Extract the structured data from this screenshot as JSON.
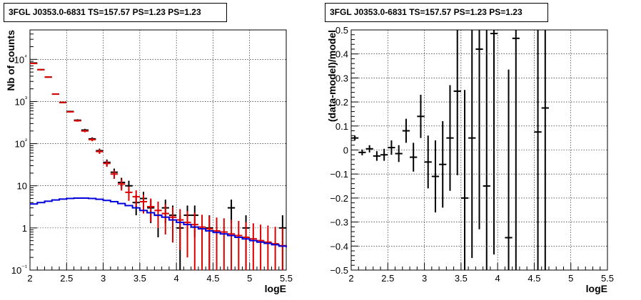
{
  "chart_data": [
    {
      "type": "line",
      "title": "3FGL J0353.0-6831 TS=157.57 PS=1.23 PS=1.23",
      "xlabel": "logE",
      "ylabel": "Nb of counts",
      "xlim": [
        2,
        5.5
      ],
      "ylim": [
        0.1,
        50000
      ],
      "y_scale": "log",
      "grid": true,
      "x_ticks": [
        "2",
        "2.5",
        "3",
        "3.5",
        "4",
        "4.5",
        "5",
        "5.5"
      ],
      "y_ticks": [
        "10⁻¹",
        "1",
        "10",
        "10²",
        "10³",
        "10⁴"
      ],
      "series": [
        {
          "color": "#000000",
          "x": [
            2.05,
            2.15,
            2.25,
            2.35,
            2.45,
            2.55,
            2.65,
            2.75,
            2.85,
            2.95,
            3.05,
            3.15,
            3.25,
            3.35,
            3.45,
            3.55,
            3.65,
            3.75,
            3.85,
            3.95,
            4.05,
            4.15,
            4.25,
            4.35,
            4.45,
            4.55,
            4.65,
            4.75,
            4.85,
            4.95,
            5.05,
            5.15,
            5.25,
            5.35,
            5.45
          ],
          "values": [
            8200,
            5700,
            3800,
            1500,
            950,
            580,
            360,
            210,
            130,
            68,
            36,
            21,
            12,
            10,
            4.0,
            5.0,
            3.0,
            2.0,
            3.0,
            2.0,
            1.0,
            2.0,
            2.0,
            null,
            1.0,
            null,
            null,
            3.0,
            null,
            1.0,
            null,
            null,
            null,
            null,
            1.0
          ],
          "errors": [
            90,
            75,
            62,
            39,
            31,
            24,
            19,
            14.5,
            11.4,
            8.2,
            6.0,
            4.6,
            3.5,
            3.2,
            2.0,
            2.2,
            1.7,
            1.4,
            1.7,
            1.4,
            1.0,
            1.4,
            1.4,
            null,
            1.0,
            null,
            null,
            1.7,
            null,
            1.0,
            null,
            null,
            null,
            null,
            1.0
          ]
        },
        {
          "color": "#dd0000",
          "x": [
            2.05,
            2.15,
            2.25,
            2.35,
            2.45,
            2.55,
            2.65,
            2.75,
            2.85,
            2.95,
            3.05,
            3.15,
            3.25,
            3.35,
            3.45,
            3.55,
            3.65,
            3.75,
            3.85,
            3.95,
            4.05,
            4.15,
            4.25,
            4.35,
            4.45,
            4.55,
            4.65,
            4.75,
            4.85,
            4.95,
            5.05,
            5.15,
            5.25,
            5.35,
            5.45
          ],
          "values": [
            8000,
            5700,
            3800,
            1500,
            950,
            570,
            350,
            200,
            125,
            65,
            34,
            19,
            11,
            7,
            5.5,
            4.2,
            3.2,
            2.6,
            2.2,
            1.8,
            1.55,
            1.35,
            1.2,
            1.05,
            0.95,
            0.85,
            0.8,
            0.72,
            0.66,
            0.6,
            0.55,
            0.5,
            0.46,
            0.42,
            0.38
          ],
          "errors": [
            90,
            75,
            62,
            39,
            31,
            24,
            19,
            14,
            11,
            8,
            5.8,
            4.4,
            3.3,
            2.6,
            2.3,
            2.0,
            1.8,
            1.6,
            1.5,
            1.35,
            1.25,
            1.15,
            1.1,
            1.0,
            0.97,
            0.92,
            0.89,
            0.85,
            0.81,
            0.77,
            0.74,
            0.7,
            0.68,
            0.65,
            0.62
          ]
        },
        {
          "color": "#0000dd",
          "x": [
            2.0,
            2.1,
            2.2,
            2.3,
            2.4,
            2.5,
            2.6,
            2.7,
            2.8,
            2.9,
            3.0,
            3.1,
            3.2,
            3.3,
            3.4,
            3.5,
            3.6,
            3.7,
            3.8,
            3.9,
            4.0,
            4.1,
            4.2,
            4.3,
            4.4,
            4.5,
            4.6,
            4.7,
            4.8,
            4.9,
            5.0,
            5.1,
            5.2,
            5.3,
            5.4,
            5.5
          ],
          "values": [
            3.7,
            4.0,
            4.3,
            4.6,
            4.85,
            5.0,
            5.1,
            5.1,
            5.0,
            4.8,
            4.5,
            4.2,
            3.8,
            3.4,
            3.0,
            2.6,
            2.3,
            2.0,
            1.8,
            1.55,
            1.35,
            1.2,
            1.05,
            0.95,
            0.85,
            0.78,
            0.72,
            0.66,
            0.6,
            0.55,
            0.5,
            0.46,
            0.43,
            0.4,
            0.37,
            0.35
          ]
        }
      ]
    },
    {
      "type": "scatter",
      "title": "3FGL J0353.0-6831 TS=157.57 PS=1.23 PS=1.23",
      "xlabel": "logE",
      "ylabel": "(data-model)/model",
      "xlim": [
        2,
        5.5
      ],
      "ylim": [
        -0.5,
        0.5
      ],
      "grid": true,
      "x_ticks": [
        "2",
        "2.5",
        "3",
        "3.5",
        "4",
        "4.5",
        "5",
        "5.5"
      ],
      "y_ticks": [
        "−0.5",
        "−0.4",
        "−0.3",
        "−0.2",
        "−0.1",
        "0",
        "0.1",
        "0.2",
        "0.3",
        "0.4",
        "0.5"
      ],
      "series": [
        {
          "color": "#000000",
          "x": [
            2.05,
            2.15,
            2.25,
            2.35,
            2.45,
            2.55,
            2.65,
            2.75,
            2.85,
            2.95,
            3.05,
            3.15,
            3.25,
            3.35,
            3.45,
            3.55,
            3.65,
            3.75,
            3.85,
            3.95,
            4.15,
            4.25,
            4.55,
            4.65
          ],
          "values": [
            0.05,
            -0.01,
            0.005,
            -0.025,
            -0.02,
            0.01,
            -0.015,
            0.08,
            -0.03,
            0.14,
            -0.05,
            -0.11,
            -0.06,
            0.05,
            0.245,
            -0.2,
            0.05,
            0.42,
            -0.15,
            0.485,
            -0.365,
            0.465,
            0.075,
            0.175
          ],
          "errors": [
            0.01,
            0.012,
            0.015,
            0.02,
            0.025,
            0.03,
            0.035,
            0.05,
            0.06,
            0.09,
            0.11,
            0.15,
            0.18,
            0.22,
            0.35,
            0.45,
            0.5,
            0.75,
            0.7,
            0.92,
            0.7,
            1.1,
            0.9,
            1.0
          ]
        }
      ]
    }
  ]
}
